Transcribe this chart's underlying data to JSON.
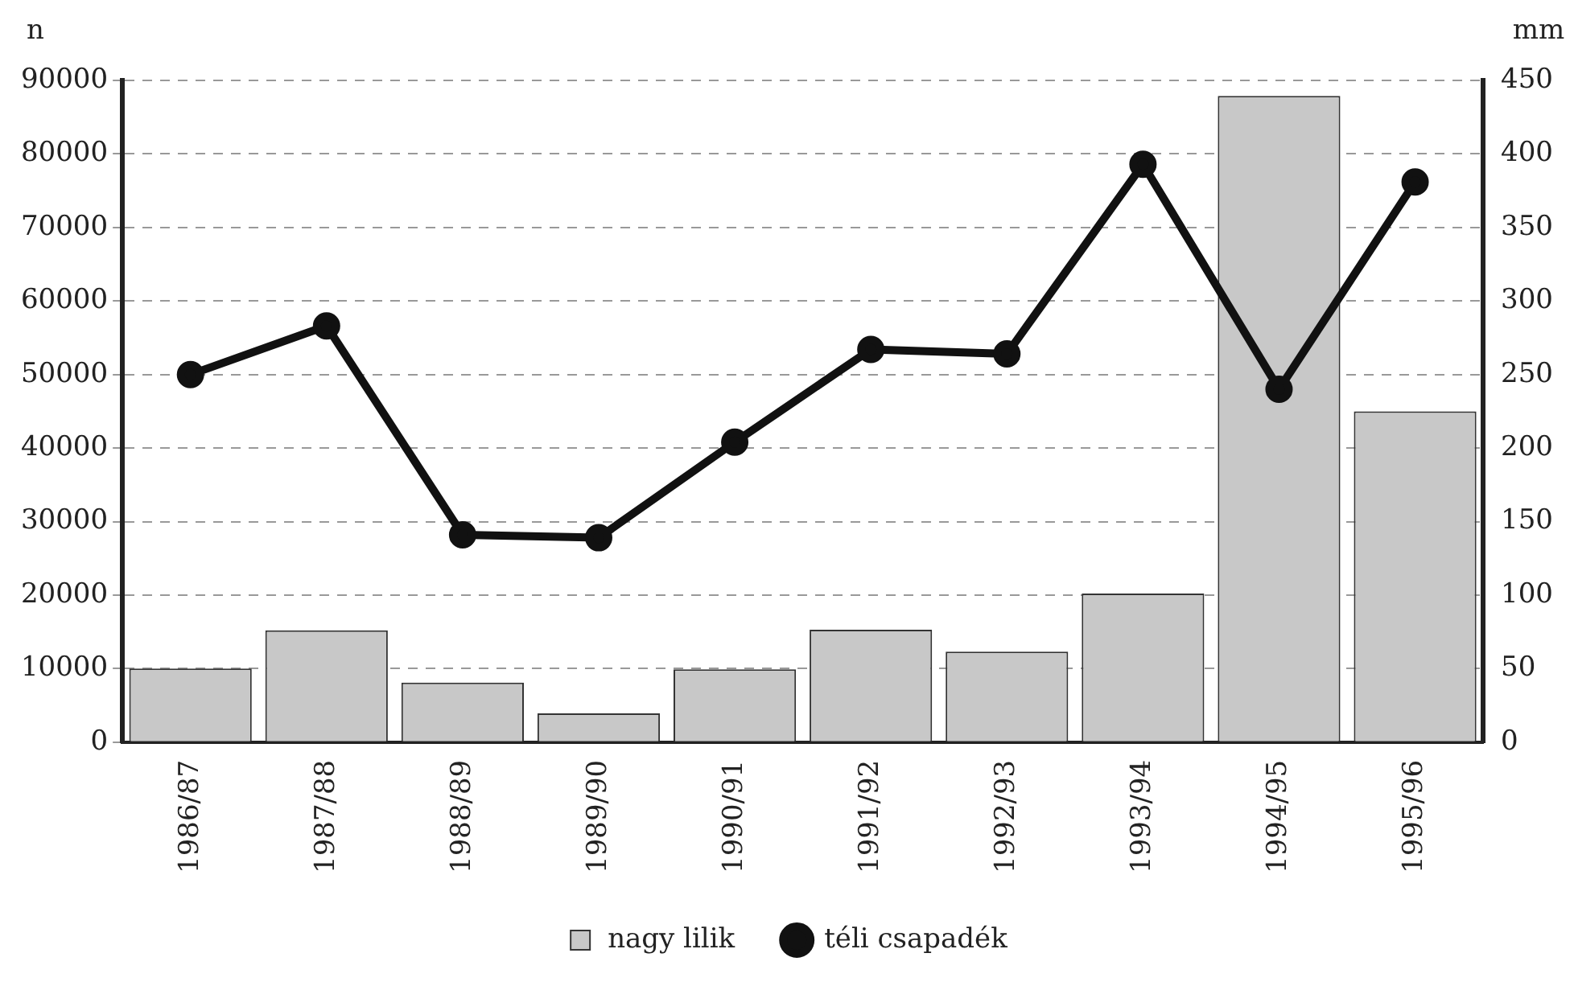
{
  "chart_data": {
    "type": "bar",
    "categories": [
      "1986/87",
      "1987/88",
      "1988/89",
      "1989/90",
      "1990/91",
      "1991/92",
      "1992/93",
      "1993/94",
      "1994/95",
      "1995/96"
    ],
    "ylabel": "n",
    "y2label": "mm",
    "series": [
      {
        "name": "nagy lilik",
        "color": "#c8c8c8",
        "values": [
          10000,
          15200,
          8100,
          3900,
          9900,
          15300,
          12300,
          20200,
          87900,
          45000
        ]
      },
      {
        "name": "téli csapadék",
        "type": "line",
        "axis": "y2",
        "color": "#111111",
        "values": [
          250,
          283,
          141,
          139,
          204,
          267,
          264,
          393,
          240,
          381
        ]
      }
    ],
    "ylim": [
      0,
      90000
    ],
    "yticks": [
      0,
      10000,
      20000,
      30000,
      40000,
      50000,
      60000,
      70000,
      80000,
      90000
    ],
    "y2lim": [
      0,
      450
    ],
    "y2ticks": [
      0,
      50,
      100,
      150,
      200,
      250,
      300,
      350,
      400,
      450
    ],
    "grid": "y",
    "legend": "bottom",
    "marker": "circle",
    "line_style": "solid"
  }
}
